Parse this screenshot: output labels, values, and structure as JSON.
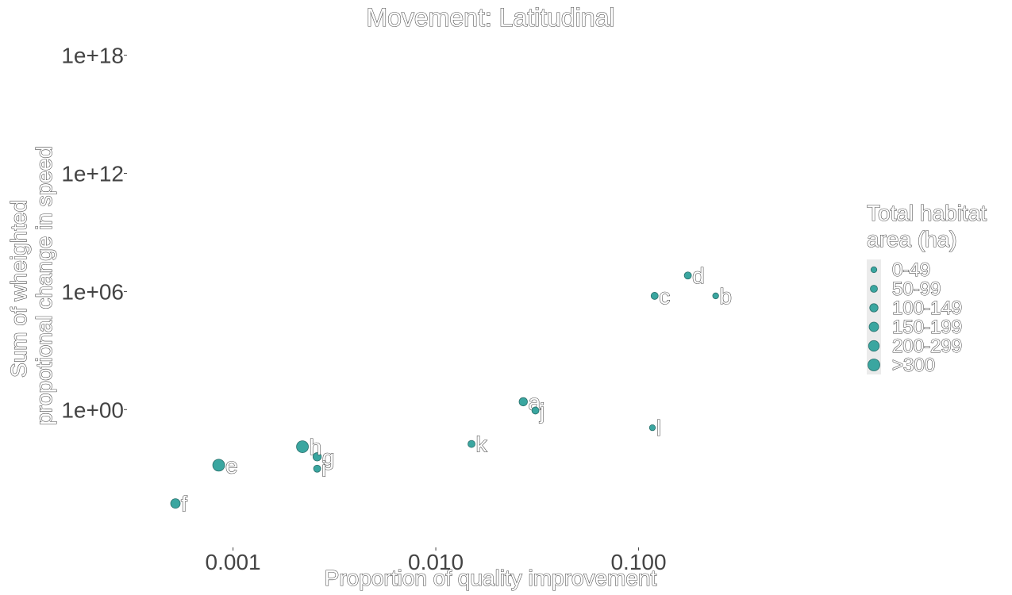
{
  "chart_data": {
    "type": "scatter",
    "title": "Movement: Latitudinal",
    "xlabel": "Proportion of quality improvement",
    "ylabel": [
      "Sum of wheighted",
      "propotional change in speed"
    ],
    "x_scale": "log10",
    "y_scale": "log10",
    "xlim": [
      0.0003,
      1.0
    ],
    "ylim": [
      1e-07,
      1e+20
    ],
    "x_ticks": [
      {
        "value": 0.001,
        "label": "0.001"
      },
      {
        "value": 0.01,
        "label": "0.010"
      },
      {
        "value": 0.1,
        "label": "0.100"
      }
    ],
    "y_ticks": [
      {
        "value": 1,
        "label": "1e+00"
      },
      {
        "value": 1000000.0,
        "label": "1e+06"
      },
      {
        "value": 1000000000000.0,
        "label": "1e+12"
      },
      {
        "value": 1e+18,
        "label": "1e+18"
      }
    ],
    "point_color": "#3aa6a0",
    "point_stroke": "#2a6f6b",
    "grid": false,
    "legend": {
      "title": [
        "Total habitat",
        "area (ha)"
      ],
      "position": "right",
      "entries": [
        {
          "label": "0-49",
          "size": 1
        },
        {
          "label": "50-99",
          "size": 2
        },
        {
          "label": "100-149",
          "size": 3
        },
        {
          "label": "150-199",
          "size": 4
        },
        {
          "label": "200-299",
          "size": 5
        },
        {
          "label": ">300",
          "size": 6
        }
      ]
    },
    "points": [
      {
        "label": "a",
        "x": 0.027,
        "y": 2.5,
        "size": 3
      },
      {
        "label": "b",
        "x": 0.24,
        "y": 600000,
        "size": 1
      },
      {
        "label": "c",
        "x": 0.12,
        "y": 600000,
        "size": 2
      },
      {
        "label": "d",
        "x": 0.175,
        "y": 6500000,
        "size": 2
      },
      {
        "label": "e",
        "x": 0.00085,
        "y": 0.0015,
        "size": 6
      },
      {
        "label": "f",
        "x": 0.00052,
        "y": 1.7e-05,
        "size": 4
      },
      {
        "label": "g",
        "x": 0.0026,
        "y": 0.004,
        "size": 3
      },
      {
        "label": "h",
        "x": 0.0022,
        "y": 0.013,
        "size": 6
      },
      {
        "label": "i",
        "x": 0.0026,
        "y": 0.001,
        "size": 2
      },
      {
        "label": "j",
        "x": 0.031,
        "y": 0.9,
        "size": 2
      },
      {
        "label": "k",
        "x": 0.015,
        "y": 0.018,
        "size": 2
      },
      {
        "label": "l",
        "x": 0.117,
        "y": 0.12,
        "size": 1
      }
    ]
  }
}
